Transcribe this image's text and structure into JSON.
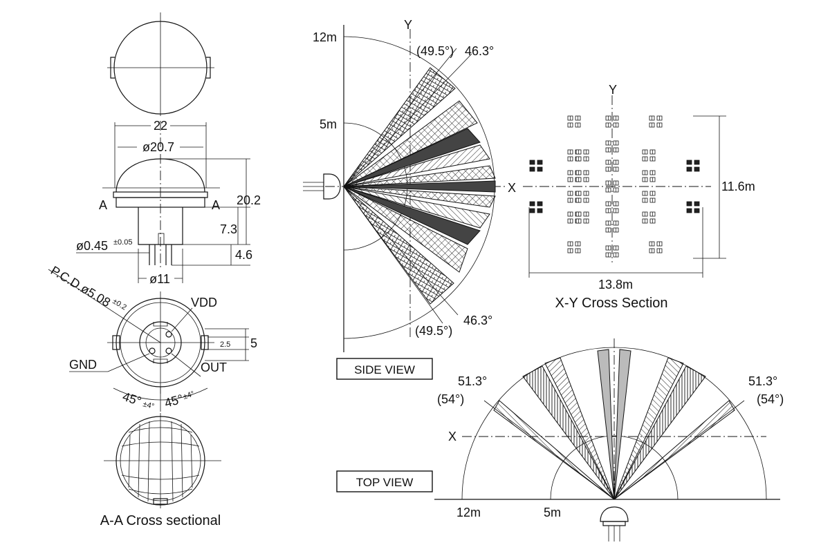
{
  "drawing": {
    "front_view": {
      "width": "22",
      "lens_diameter": "ø20.7",
      "height": "20.2",
      "section_mark_left": "A",
      "section_mark_right": "A",
      "body_height": "7.3",
      "pin_length": "4.6",
      "pin_diameter": "ø0.45",
      "pin_tolerance": "±0.05",
      "base_diameter": "ø11"
    },
    "bottom_view": {
      "pcd": "P.C.D.ø5.08",
      "pcd_tolerance": "±0.2",
      "pin_vdd": "VDD",
      "pin_gnd": "GND",
      "pin_out": "OUT",
      "tab_width": "2.5",
      "tab_offset": "5",
      "angle_left": "45°",
      "angle_left_tol": "±4°",
      "angle_right": "45°",
      "angle_right_tol": "±4°"
    },
    "section_title": "A-A Cross sectional",
    "side_view": {
      "range_far": "12m",
      "range_near": "5m",
      "axis_y": "Y",
      "axis_x": "X",
      "angle_top": "46.3°",
      "angle_top_paren": "(49.5°)",
      "angle_bottom": "46.3°",
      "angle_bottom_paren": "(49.5°)",
      "title": "SIDE VIEW"
    },
    "xy_section": {
      "axis_y": "Y",
      "height": "11.6m",
      "width": "13.8m",
      "title": "X-Y Cross Section"
    },
    "top_view": {
      "axis_x": "X",
      "angle_left": "51.3°",
      "angle_left_paren": "(54°)",
      "angle_right": "51.3°",
      "angle_right_paren": "(54°)",
      "range_far": "12m",
      "range_near": "5m",
      "title": "TOP VIEW"
    }
  }
}
